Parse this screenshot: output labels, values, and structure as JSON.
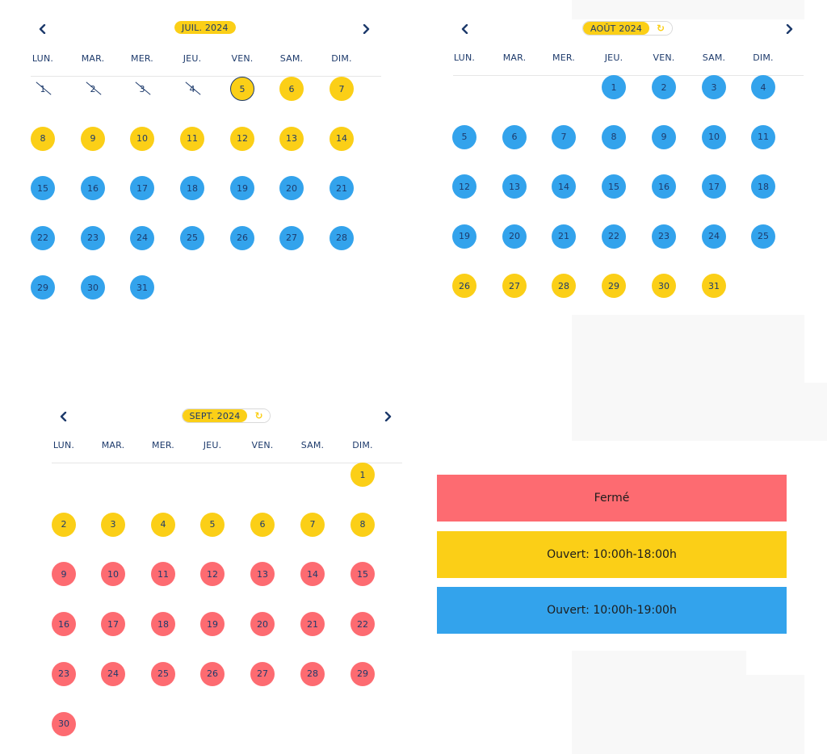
{
  "weekdays": [
    "LUN.",
    "MAR.",
    "MER.",
    "JEU.",
    "VEN.",
    "SAM.",
    "DIM."
  ],
  "calendars": [
    {
      "month_label": "JUIL. 2024",
      "has_refresh": false,
      "first_offset": 0,
      "days": [
        {
          "d": "1",
          "s": "past"
        },
        {
          "d": "2",
          "s": "past"
        },
        {
          "d": "3",
          "s": "past"
        },
        {
          "d": "4",
          "s": "past"
        },
        {
          "d": "5",
          "s": "yellow-today"
        },
        {
          "d": "6",
          "s": "yellow"
        },
        {
          "d": "7",
          "s": "yellow"
        },
        {
          "d": "8",
          "s": "yellow"
        },
        {
          "d": "9",
          "s": "yellow"
        },
        {
          "d": "10",
          "s": "yellow"
        },
        {
          "d": "11",
          "s": "yellow"
        },
        {
          "d": "12",
          "s": "yellow"
        },
        {
          "d": "13",
          "s": "yellow"
        },
        {
          "d": "14",
          "s": "yellow"
        },
        {
          "d": "15",
          "s": "blue"
        },
        {
          "d": "16",
          "s": "blue"
        },
        {
          "d": "17",
          "s": "blue"
        },
        {
          "d": "18",
          "s": "blue"
        },
        {
          "d": "19",
          "s": "blue"
        },
        {
          "d": "20",
          "s": "blue"
        },
        {
          "d": "21",
          "s": "blue"
        },
        {
          "d": "22",
          "s": "blue"
        },
        {
          "d": "23",
          "s": "blue"
        },
        {
          "d": "24",
          "s": "blue"
        },
        {
          "d": "25",
          "s": "blue"
        },
        {
          "d": "26",
          "s": "blue"
        },
        {
          "d": "27",
          "s": "blue"
        },
        {
          "d": "28",
          "s": "blue"
        },
        {
          "d": "29",
          "s": "blue"
        },
        {
          "d": "30",
          "s": "blue"
        },
        {
          "d": "31",
          "s": "blue"
        }
      ]
    },
    {
      "month_label": "AOÛT 2024",
      "has_refresh": true,
      "first_offset": 3,
      "days": [
        {
          "d": "1",
          "s": "blue"
        },
        {
          "d": "2",
          "s": "blue"
        },
        {
          "d": "3",
          "s": "blue"
        },
        {
          "d": "4",
          "s": "blue"
        },
        {
          "d": "5",
          "s": "blue"
        },
        {
          "d": "6",
          "s": "blue"
        },
        {
          "d": "7",
          "s": "blue"
        },
        {
          "d": "8",
          "s": "blue"
        },
        {
          "d": "9",
          "s": "blue"
        },
        {
          "d": "10",
          "s": "blue"
        },
        {
          "d": "11",
          "s": "blue"
        },
        {
          "d": "12",
          "s": "blue"
        },
        {
          "d": "13",
          "s": "blue"
        },
        {
          "d": "14",
          "s": "blue"
        },
        {
          "d": "15",
          "s": "blue"
        },
        {
          "d": "16",
          "s": "blue"
        },
        {
          "d": "17",
          "s": "blue"
        },
        {
          "d": "18",
          "s": "blue"
        },
        {
          "d": "19",
          "s": "blue"
        },
        {
          "d": "20",
          "s": "blue"
        },
        {
          "d": "21",
          "s": "blue"
        },
        {
          "d": "22",
          "s": "blue"
        },
        {
          "d": "23",
          "s": "blue"
        },
        {
          "d": "24",
          "s": "blue"
        },
        {
          "d": "25",
          "s": "blue"
        },
        {
          "d": "26",
          "s": "yellow"
        },
        {
          "d": "27",
          "s": "yellow"
        },
        {
          "d": "28",
          "s": "yellow"
        },
        {
          "d": "29",
          "s": "yellow"
        },
        {
          "d": "30",
          "s": "yellow"
        },
        {
          "d": "31",
          "s": "yellow"
        }
      ]
    },
    {
      "month_label": "SEPT. 2024",
      "has_refresh": true,
      "first_offset": 6,
      "days": [
        {
          "d": "1",
          "s": "yellow"
        },
        {
          "d": "2",
          "s": "yellow"
        },
        {
          "d": "3",
          "s": "yellow"
        },
        {
          "d": "4",
          "s": "yellow"
        },
        {
          "d": "5",
          "s": "yellow"
        },
        {
          "d": "6",
          "s": "yellow"
        },
        {
          "d": "7",
          "s": "yellow"
        },
        {
          "d": "8",
          "s": "yellow"
        },
        {
          "d": "9",
          "s": "red"
        },
        {
          "d": "10",
          "s": "red"
        },
        {
          "d": "11",
          "s": "red"
        },
        {
          "d": "12",
          "s": "red"
        },
        {
          "d": "13",
          "s": "red"
        },
        {
          "d": "14",
          "s": "red"
        },
        {
          "d": "15",
          "s": "red"
        },
        {
          "d": "16",
          "s": "red"
        },
        {
          "d": "17",
          "s": "red"
        },
        {
          "d": "18",
          "s": "red"
        },
        {
          "d": "19",
          "s": "red"
        },
        {
          "d": "20",
          "s": "red"
        },
        {
          "d": "21",
          "s": "red"
        },
        {
          "d": "22",
          "s": "red"
        },
        {
          "d": "23",
          "s": "red"
        },
        {
          "d": "24",
          "s": "red"
        },
        {
          "d": "25",
          "s": "red"
        },
        {
          "d": "26",
          "s": "red"
        },
        {
          "d": "27",
          "s": "red"
        },
        {
          "d": "28",
          "s": "red"
        },
        {
          "d": "29",
          "s": "red"
        },
        {
          "d": "30",
          "s": "red"
        }
      ]
    }
  ],
  "refresh_icon": "refresh-icon",
  "nav_prev_icon": "chevron-left-icon",
  "nav_next_icon": "chevron-right-icon",
  "legend": [
    {
      "label": "Fermé",
      "color": "#fd6b71"
    },
    {
      "label": "Ouvert: 10:00h-18:00h",
      "color": "#fbcf17"
    },
    {
      "label": "Ouvert: 10:00h-19:00h",
      "color": "#33a3ec"
    }
  ],
  "colors": {
    "yellow": "#fbcf17",
    "blue": "#33a3ec",
    "red": "#fd6b71",
    "text": "#1d3a6b"
  }
}
